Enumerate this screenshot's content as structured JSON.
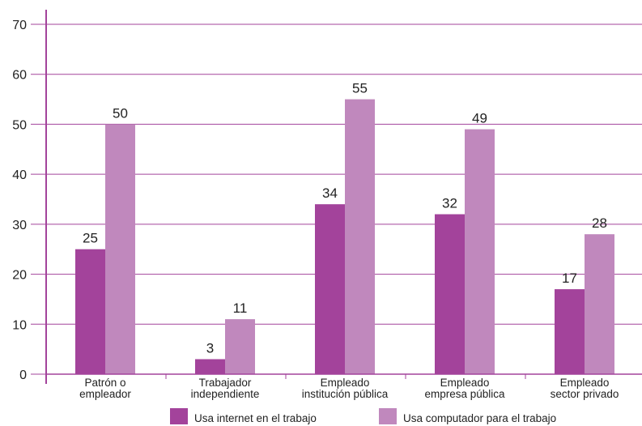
{
  "chart_data": {
    "type": "bar",
    "categories": [
      [
        "Patrón o",
        "empleador"
      ],
      [
        "Trabajador",
        "independiente"
      ],
      [
        "Empleado",
        "institución pública"
      ],
      [
        "Empleado",
        "empresa pública"
      ],
      [
        "Empleado",
        "sector privado"
      ]
    ],
    "series": [
      {
        "name": "Usa internet en el trabajo",
        "values": [
          25,
          3,
          34,
          32,
          17
        ],
        "color": "#a3439b"
      },
      {
        "name": "Usa computador para el trabajo",
        "values": [
          50,
          11,
          55,
          49,
          28
        ],
        "color": "#c088bd"
      }
    ],
    "ylim": [
      0,
      70
    ],
    "yticks": [
      0,
      10,
      20,
      30,
      40,
      50,
      60,
      70
    ],
    "grid": true,
    "grid_color": "#a3439b",
    "legend_placement": "bottom",
    "title": "",
    "xlabel": "",
    "ylabel": ""
  }
}
